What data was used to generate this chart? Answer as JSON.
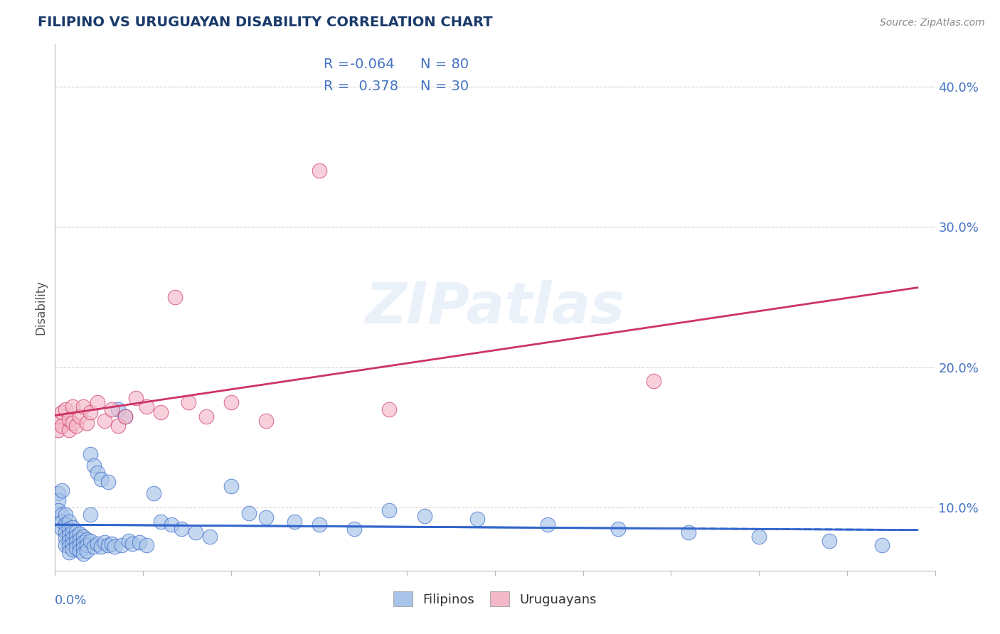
{
  "title": "FILIPINO VS URUGUAYAN DISABILITY CORRELATION CHART",
  "source": "Source: ZipAtlas.com",
  "ylabel_ticks": [
    0.1,
    0.2,
    0.3,
    0.4
  ],
  "ylabel_tick_labels": [
    "10.0%",
    "20.0%",
    "30.0%",
    "40.0%"
  ],
  "xlim": [
    0.0,
    0.25
  ],
  "ylim": [
    0.055,
    0.43
  ],
  "watermark": "ZIPatlas",
  "filipino_R": -0.064,
  "filipino_N": 80,
  "uruguayan_R": 0.378,
  "uruguayan_N": 30,
  "filipino_color": "#a8c4e8",
  "uruguayan_color": "#f5b8c8",
  "filipino_line_color": "#3366cc",
  "uruguayan_line_color": "#cc3366",
  "background_color": "#ffffff",
  "title_color": "#1a3a6b",
  "axis_color": "#4472c4",
  "grid_color": "#cccccc",
  "legend_text_color": "#4472c4",
  "source_color": "#888888",
  "filipino_x": [
    0.001,
    0.001,
    0.001,
    0.002,
    0.002,
    0.002,
    0.002,
    0.003,
    0.003,
    0.003,
    0.003,
    0.003,
    0.004,
    0.004,
    0.004,
    0.004,
    0.004,
    0.004,
    0.005,
    0.005,
    0.005,
    0.005,
    0.005,
    0.006,
    0.006,
    0.006,
    0.006,
    0.007,
    0.007,
    0.007,
    0.007,
    0.008,
    0.008,
    0.008,
    0.008,
    0.009,
    0.009,
    0.009,
    0.01,
    0.01,
    0.01,
    0.011,
    0.011,
    0.012,
    0.012,
    0.013,
    0.013,
    0.014,
    0.015,
    0.015,
    0.016,
    0.017,
    0.018,
    0.019,
    0.02,
    0.021,
    0.022,
    0.024,
    0.026,
    0.028,
    0.03,
    0.033,
    0.036,
    0.04,
    0.044,
    0.05,
    0.055,
    0.06,
    0.068,
    0.075,
    0.085,
    0.095,
    0.105,
    0.12,
    0.14,
    0.16,
    0.18,
    0.2,
    0.22,
    0.235
  ],
  "filipino_y": [
    0.11,
    0.105,
    0.098,
    0.112,
    0.095,
    0.09,
    0.085,
    0.095,
    0.088,
    0.082,
    0.078,
    0.073,
    0.09,
    0.085,
    0.08,
    0.076,
    0.072,
    0.068,
    0.086,
    0.082,
    0.078,
    0.074,
    0.07,
    0.083,
    0.079,
    0.075,
    0.071,
    0.081,
    0.077,
    0.073,
    0.069,
    0.079,
    0.075,
    0.071,
    0.067,
    0.077,
    0.073,
    0.069,
    0.138,
    0.095,
    0.076,
    0.13,
    0.072,
    0.125,
    0.074,
    0.12,
    0.072,
    0.075,
    0.118,
    0.073,
    0.074,
    0.072,
    0.17,
    0.073,
    0.165,
    0.076,
    0.074,
    0.075,
    0.073,
    0.11,
    0.09,
    0.088,
    0.085,
    0.082,
    0.079,
    0.115,
    0.096,
    0.093,
    0.09,
    0.088,
    0.085,
    0.098,
    0.094,
    0.092,
    0.088,
    0.085,
    0.082,
    0.079,
    0.076,
    0.073
  ],
  "uruguayan_x": [
    0.001,
    0.001,
    0.002,
    0.002,
    0.003,
    0.004,
    0.004,
    0.005,
    0.005,
    0.006,
    0.007,
    0.008,
    0.009,
    0.01,
    0.012,
    0.014,
    0.016,
    0.018,
    0.02,
    0.023,
    0.026,
    0.03,
    0.034,
    0.038,
    0.043,
    0.05,
    0.06,
    0.075,
    0.095,
    0.17
  ],
  "uruguayan_y": [
    0.162,
    0.155,
    0.168,
    0.158,
    0.17,
    0.155,
    0.163,
    0.16,
    0.172,
    0.158,
    0.165,
    0.172,
    0.16,
    0.168,
    0.175,
    0.162,
    0.17,
    0.158,
    0.165,
    0.178,
    0.172,
    0.168,
    0.25,
    0.175,
    0.165,
    0.175,
    0.162,
    0.34,
    0.17,
    0.19
  ]
}
